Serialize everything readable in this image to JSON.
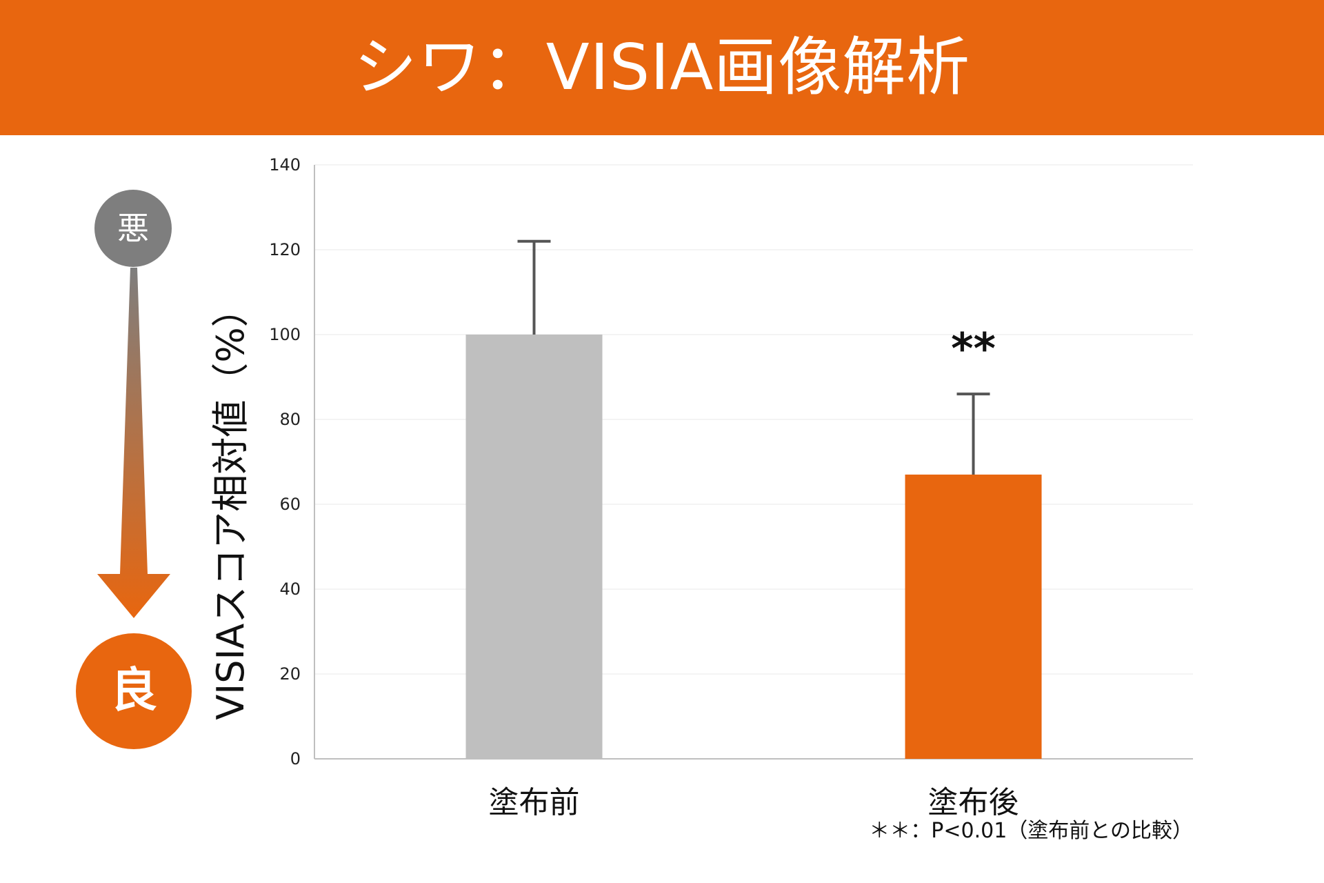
{
  "header": {
    "title": "シワ：VISIA画像解析"
  },
  "indicator": {
    "bad_label": "悪",
    "good_label": "良"
  },
  "footnote": "＊＊：P<0.01（塗布前との比較）",
  "colors": {
    "accent": "#e8660f",
    "before_bar": "#bfbfbf",
    "after_bar": "#e8660f",
    "bad_circle": "#7e7e7e",
    "error_bar": "#555555"
  },
  "chart_data": {
    "type": "bar",
    "title": "シワ：VISIA画像解析",
    "xlabel": "",
    "ylabel": "VISIAスコア相対値（%）",
    "ylim": [
      0,
      140
    ],
    "yticks": [
      0,
      20,
      40,
      60,
      80,
      100,
      120,
      140
    ],
    "grid": true,
    "categories": [
      "塗布前",
      "塗布後"
    ],
    "values": [
      100,
      67
    ],
    "errors": [
      22,
      19
    ],
    "significance": [
      "",
      "**"
    ]
  }
}
